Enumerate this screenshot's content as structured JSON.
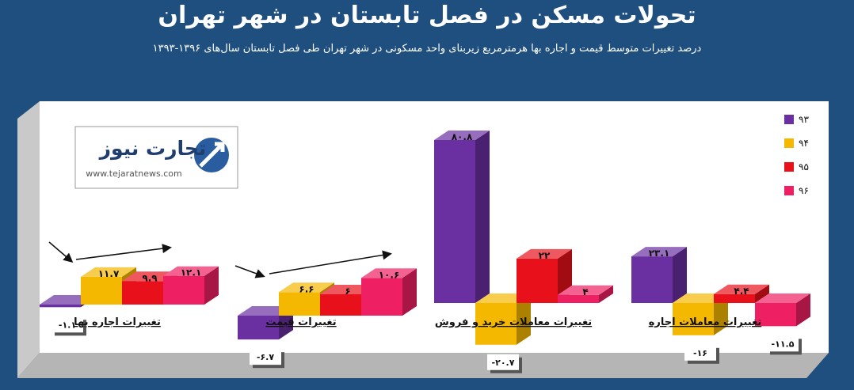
{
  "page": {
    "title": "تحولات مسکن در فصل تابستان در شهر تهران",
    "subtitle": "درصد تغییرات متوسط قیمت و اجاره بها هرمترمربع زیربنای واحد مسکونی در شهر تهران طی فصل تابستان سال‌های ۱۳۹۶-۱۳۹۳"
  },
  "logo": {
    "name": "تجارت نیوز",
    "url_text": "www.tejaratnews.com"
  },
  "colors": {
    "background": "#1f4f7f",
    "panel": "#ffffff"
  },
  "chart_data": {
    "type": "bar",
    "categories": [
      "تغییرات اجاره بها",
      "تغییرات قیمت",
      "تغییرات معاملات خرید و فروش",
      "تغییرات معاملات اجاره"
    ],
    "series": [
      {
        "name": "۹۳",
        "color": "#6a2fa0",
        "values": [
          -1.1,
          -6.7,
          80.8,
          23.1
        ],
        "labels": [
          "-۱.۱",
          "-۶.۷",
          "۸۰.۸",
          "۲۳.۱"
        ]
      },
      {
        "name": "۹۴",
        "color": "#f5b800",
        "values": [
          11.7,
          6.6,
          -20.7,
          -16
        ],
        "labels": [
          "۱۱.۷",
          "۶.۶",
          "-۲۰.۷",
          "-۱۶"
        ]
      },
      {
        "name": "۹۵",
        "color": "#e8101a",
        "values": [
          9.9,
          6,
          22,
          4.4
        ],
        "labels": [
          "۹.۹",
          "۶",
          "۲۲",
          "۴.۴"
        ]
      },
      {
        "name": "۹۶",
        "color": "#ef1f63",
        "values": [
          12.1,
          10.6,
          4,
          -11.5
        ],
        "labels": [
          "۱۲.۱",
          "۱۰.۶",
          "۴",
          "-۱۱.۵"
        ]
      }
    ],
    "grid": false,
    "legend_position": "top-right"
  }
}
